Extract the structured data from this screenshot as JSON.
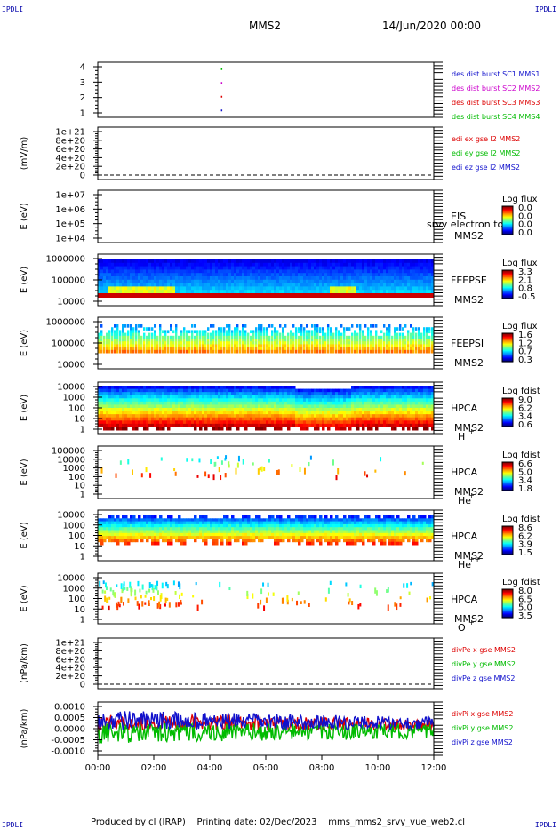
{
  "corners": {
    "tl": "IPDLI",
    "tr": "IPDLI",
    "bl": "IPDLI",
    "br": "IPDLI"
  },
  "header": {
    "spacecraft": "MMS2",
    "date": "14/Jun/2020 00:00"
  },
  "footer": {
    "producer": "Produced by cl (IRAP)",
    "printing": "Printing date: 02/Dec/2023",
    "script": "mms_mms2_srvy_vue_web2.cl"
  },
  "colors": {
    "blue": "#1010cc",
    "magenta": "#cc00cc",
    "red": "#dd0000",
    "green": "#00bb00"
  },
  "time_axis": {
    "ticks": [
      "00:00",
      "02:00",
      "04:00",
      "06:00",
      "08:00",
      "10:00",
      "12:00"
    ]
  },
  "chart_data": [
    {
      "type": "scatter",
      "id": "burst",
      "yticks": [
        "4",
        "3",
        "2",
        "1"
      ],
      "ylim": [
        0.5,
        4.5
      ],
      "series": [
        {
          "name": "des dist burst SC1 MMS1",
          "y": 1,
          "color": "#1010cc",
          "x_hours": [
            4.4
          ]
        },
        {
          "name": "des dist burst SC2 MMS2",
          "y": 3,
          "color": "#cc00cc",
          "x_hours": [
            4.4
          ]
        },
        {
          "name": "des dist burst SC3 MMS3",
          "y": 2,
          "color": "#dd0000",
          "x_hours": [
            4.4
          ]
        },
        {
          "name": "des dist burst SC4 MMS4",
          "y": 4,
          "color": "#00bb00",
          "x_hours": [
            4.4
          ]
        }
      ]
    },
    {
      "type": "line",
      "id": "edi",
      "ylabel": "(mV/m)",
      "yticks": [
        "1e+21",
        "8e+20",
        "6e+20",
        "4e+20",
        "2e+20",
        "0"
      ],
      "series": [
        {
          "name": "edi ex gse l2 MMS2",
          "color": "#dd0000"
        },
        {
          "name": "edi ey gse l2 MMS2",
          "color": "#00bb00"
        },
        {
          "name": "edi ez gse l2 MMS2",
          "color": "#1010cc"
        }
      ]
    },
    {
      "type": "heatmap",
      "id": "eis",
      "ylabel": "E (eV)",
      "yticks": [
        "1e+07",
        "1e+06",
        "1e+05",
        "1e+04"
      ],
      "instrument": "EIS",
      "spacecraft": "MMS2",
      "overlay": "srvy electron to",
      "colorbar": {
        "title": "Log flux",
        "ticks": [
          "0.0",
          "0.0",
          "0.0",
          "0.0"
        ]
      }
    },
    {
      "type": "heatmap",
      "id": "feepse",
      "ylabel": "E (eV)",
      "yticks": [
        "1000000",
        "100000",
        "10000"
      ],
      "instrument": "FEEPSE",
      "spacecraft": "MMS2",
      "colorbar": {
        "title": "Log flux",
        "ticks": [
          "3.3",
          "2.1",
          "0.8",
          "-0.5"
        ]
      }
    },
    {
      "type": "heatmap",
      "id": "feepsi",
      "ylabel": "E (eV)",
      "yticks": [
        "1000000",
        "100000",
        "10000"
      ],
      "instrument": "FEEPSI",
      "spacecraft": "MMS2",
      "colorbar": {
        "title": "Log flux",
        "ticks": [
          "1.6",
          "1.2",
          "0.7",
          "0.3"
        ]
      }
    },
    {
      "type": "heatmap",
      "id": "hpca_h",
      "ylabel": "E (eV)",
      "yticks": [
        "10000",
        "1000",
        "100",
        "10",
        "1"
      ],
      "instrument": "HPCA",
      "spacecraft": "MMS2",
      "species": "H",
      "charge": "+",
      "colorbar": {
        "title": "Log fdist",
        "ticks": [
          "9.0",
          "6.2",
          "3.4",
          "0.6"
        ]
      }
    },
    {
      "type": "heatmap",
      "id": "hpca_he1",
      "ylabel": "E (eV)",
      "yticks": [
        "100000",
        "10000",
        "1000",
        "100",
        "10",
        "1"
      ],
      "instrument": "HPCA",
      "spacecraft": "MMS2",
      "species": "He",
      "charge": "+",
      "colorbar": {
        "title": "Log fdist",
        "ticks": [
          "6.6",
          "5.0",
          "3.4",
          "1.8"
        ]
      }
    },
    {
      "type": "heatmap",
      "id": "hpca_he2",
      "ylabel": "E (eV)",
      "yticks": [
        "10000",
        "1000",
        "100",
        "10",
        "1"
      ],
      "instrument": "HPCA",
      "spacecraft": "MMS2",
      "species": "He",
      "charge": "++",
      "colorbar": {
        "title": "Log fdist",
        "ticks": [
          "8.6",
          "6.2",
          "3.9",
          "1.5"
        ]
      }
    },
    {
      "type": "heatmap",
      "id": "hpca_o",
      "ylabel": "E (eV)",
      "yticks": [
        "10000",
        "1000",
        "100",
        "10",
        "1"
      ],
      "instrument": "HPCA",
      "spacecraft": "MMS2",
      "species": "O",
      "charge": "+",
      "colorbar": {
        "title": "Log fdist",
        "ticks": [
          "8.0",
          "6.5",
          "5.0",
          "3.5"
        ]
      }
    },
    {
      "type": "line",
      "id": "divpe",
      "ylabel": "(nPa/km)",
      "yticks": [
        "1e+21",
        "8e+20",
        "6e+20",
        "4e+20",
        "2e+20",
        "0"
      ],
      "series": [
        {
          "name": "divPe x gse MMS2",
          "color": "#dd0000"
        },
        {
          "name": "divPe y gse MMS2",
          "color": "#00bb00"
        },
        {
          "name": "divPe z gse MMS2",
          "color": "#1010cc"
        }
      ]
    },
    {
      "type": "line",
      "id": "divpi",
      "ylabel": "(nPa/km)",
      "yticks": [
        "0.0010",
        "0.0005",
        "0.0000",
        "-0.0005",
        "-0.0010"
      ],
      "ylim": [
        -0.00125,
        0.00125
      ],
      "series": [
        {
          "name": "divPi x gse MMS2",
          "color": "#dd0000",
          "mean": 0.0003,
          "spread": 0.0004
        },
        {
          "name": "divPi y gse MMS2",
          "color": "#00bb00",
          "mean": -0.0002,
          "spread": 0.0005
        },
        {
          "name": "divPi z gse MMS2",
          "color": "#1010cc",
          "mean": 0.0004,
          "spread": 0.00045
        }
      ]
    }
  ]
}
